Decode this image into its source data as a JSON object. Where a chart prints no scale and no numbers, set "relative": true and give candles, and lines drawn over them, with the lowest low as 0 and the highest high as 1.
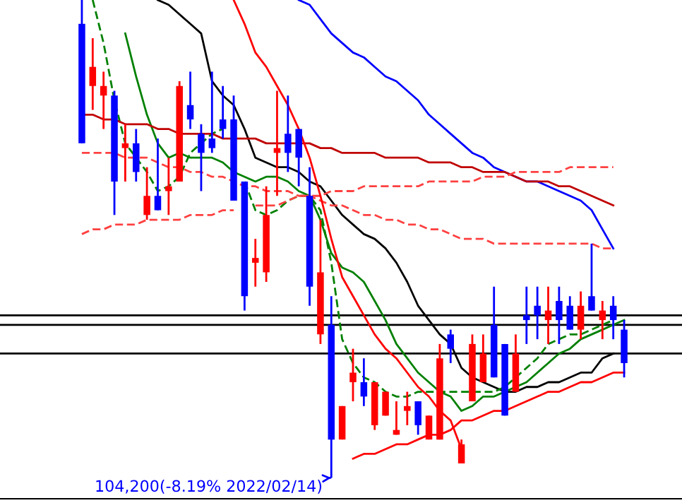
{
  "chart_data": {
    "type": "candlestick",
    "relative": true,
    "tick_labels": false,
    "categories": [
      null,
      null,
      null,
      null,
      null,
      null,
      null,
      null,
      null,
      null,
      null,
      null,
      null,
      null,
      null,
      null,
      null,
      null,
      null,
      null,
      null,
      null,
      null,
      null,
      null,
      null,
      null,
      null,
      null,
      null,
      null,
      null,
      null,
      null,
      null,
      null,
      null,
      null,
      null,
      null,
      null,
      null,
      null,
      null,
      null,
      null,
      null,
      null,
      null,
      null,
      null
    ],
    "ohlc": [
      [
        0.95,
        1.0,
        0.7,
        0.7
      ],
      [
        0.82,
        0.92,
        0.77,
        0.86
      ],
      [
        0.8,
        0.85,
        0.73,
        0.82
      ],
      [
        0.8,
        0.81,
        0.55,
        0.62
      ],
      [
        0.69,
        0.74,
        0.62,
        0.7
      ],
      [
        0.7,
        0.73,
        0.62,
        0.64
      ],
      [
        0.55,
        0.65,
        0.54,
        0.59
      ],
      [
        0.59,
        0.71,
        0.56,
        0.56
      ],
      [
        0.6,
        0.67,
        0.55,
        0.61
      ],
      [
        0.62,
        0.83,
        0.62,
        0.82
      ],
      [
        0.78,
        0.85,
        0.73,
        0.75
      ],
      [
        0.72,
        0.74,
        0.6,
        0.68
      ],
      [
        0.71,
        0.85,
        0.68,
        0.69
      ],
      [
        0.75,
        0.82,
        0.71,
        0.73
      ],
      [
        0.75,
        0.8,
        0.58,
        0.58
      ],
      [
        0.62,
        0.62,
        0.35,
        0.38
      ],
      [
        0.45,
        0.5,
        0.4,
        0.46
      ],
      [
        0.43,
        0.61,
        0.41,
        0.55
      ],
      [
        0.68,
        0.81,
        0.59,
        0.69
      ],
      [
        0.72,
        0.8,
        0.64,
        0.68
      ],
      [
        0.73,
        0.73,
        0.61,
        0.67
      ],
      [
        0.59,
        0.65,
        0.36,
        0.4
      ],
      [
        0.3,
        0.54,
        0.28,
        0.43
      ],
      [
        0.32,
        0.38,
        0.0,
        0.08
      ],
      [
        0.08,
        0.15,
        0.08,
        0.15
      ],
      [
        0.2,
        0.27,
        0.16,
        0.22
      ],
      [
        0.2,
        0.25,
        0.15,
        0.17
      ],
      [
        0.11,
        0.2,
        0.1,
        0.2
      ],
      [
        0.13,
        0.18,
        0.13,
        0.18
      ],
      [
        0.09,
        0.16,
        0.09,
        0.1
      ],
      [
        0.14,
        0.18,
        0.11,
        0.15
      ],
      [
        0.16,
        0.16,
        0.09,
        0.11
      ],
      [
        0.08,
        0.13,
        0.08,
        0.13
      ],
      [
        0.08,
        0.28,
        0.08,
        0.25
      ],
      [
        0.3,
        0.31,
        0.24,
        0.27
      ],
      [
        0.03,
        0.08,
        0.03,
        0.07
      ],
      [
        0.16,
        0.3,
        0.16,
        0.28
      ],
      [
        0.2,
        0.3,
        0.2,
        0.26
      ],
      [
        0.32,
        0.4,
        0.21,
        0.21
      ],
      [
        0.28,
        0.28,
        0.13,
        0.13
      ],
      [
        0.18,
        0.3,
        0.18,
        0.26
      ],
      [
        0.34,
        0.4,
        0.28,
        0.33
      ],
      [
        0.36,
        0.4,
        0.29,
        0.34
      ],
      [
        0.33,
        0.4,
        0.28,
        0.35
      ],
      [
        0.37,
        0.4,
        0.28,
        0.33
      ],
      [
        0.36,
        0.38,
        0.31,
        0.31
      ],
      [
        0.31,
        0.39,
        0.29,
        0.36
      ],
      [
        0.38,
        0.49,
        0.35,
        0.35
      ],
      [
        0.33,
        0.37,
        0.29,
        0.35
      ],
      [
        0.36,
        0.38,
        0.29,
        0.33
      ],
      [
        0.31,
        0.33,
        0.21,
        0.24
      ]
    ],
    "colors": [
      "#0000ff",
      "#ff0000",
      "#ff0000",
      "#0000ff",
      "#ff0000",
      "#0000ff",
      "#ff0000",
      "#0000ff",
      "#ff0000",
      "#ff0000",
      "#0000ff",
      "#0000ff",
      "#0000ff",
      "#0000ff",
      "#0000ff",
      "#0000ff",
      "#ff0000",
      "#ff0000",
      "#ff0000",
      "#0000ff",
      "#0000ff",
      "#0000ff",
      "#ff0000",
      "#0000ff",
      "#ff0000",
      "#ff0000",
      "#0000ff",
      "#ff0000",
      "#ff0000",
      "#ff0000",
      "#ff0000",
      "#0000ff",
      "#ff0000",
      "#ff0000",
      "#0000ff",
      "#ff0000",
      "#ff0000",
      "#ff0000",
      "#0000ff",
      "#0000ff",
      "#ff0000",
      "#0000ff",
      "#0000ff",
      "#ff0000",
      "#0000ff",
      "#0000ff",
      "#ff0000",
      "#0000ff",
      "#ff0000",
      "#0000ff",
      "#0000ff"
    ],
    "series": [
      {
        "type": "line",
        "color": "#0000ff",
        "line_style": "solid",
        "values": [
          null,
          null,
          null,
          null,
          null,
          null,
          null,
          null,
          null,
          null,
          null,
          null,
          null,
          null,
          null,
          null,
          null,
          null,
          null,
          null,
          1.0,
          0.99,
          0.96,
          0.93,
          0.91,
          0.89,
          0.88,
          0.86,
          0.84,
          0.83,
          0.81,
          0.79,
          0.76,
          0.74,
          0.72,
          0.7,
          0.68,
          0.67,
          0.65,
          0.64,
          0.63,
          0.62,
          0.62,
          0.61,
          0.6,
          0.59,
          0.58,
          0.56,
          0.52,
          0.48,
          null
        ]
      },
      {
        "type": "line",
        "color": "#000000",
        "line_style": "solid",
        "values": [
          null,
          null,
          null,
          null,
          null,
          null,
          null,
          1.0,
          0.99,
          0.97,
          0.95,
          0.93,
          0.83,
          0.8,
          0.78,
          0.73,
          0.67,
          0.66,
          0.65,
          0.65,
          0.64,
          0.62,
          0.61,
          0.58,
          0.55,
          0.53,
          0.51,
          0.5,
          0.48,
          0.45,
          0.41,
          0.36,
          0.33,
          0.3,
          0.28,
          0.23,
          0.21,
          0.2,
          0.19,
          0.18,
          0.18,
          0.19,
          0.19,
          0.2,
          0.2,
          0.21,
          0.22,
          0.22,
          0.25,
          0.26,
          null
        ]
      },
      {
        "type": "line",
        "color": "#008000",
        "line_style": "solid",
        "values": [
          null,
          null,
          null,
          null,
          0.93,
          0.84,
          0.76,
          0.7,
          0.67,
          0.68,
          0.67,
          0.67,
          0.67,
          0.66,
          0.64,
          0.63,
          0.62,
          0.63,
          0.63,
          0.62,
          0.6,
          0.59,
          0.54,
          0.47,
          0.44,
          0.43,
          0.41,
          0.37,
          0.33,
          0.28,
          0.25,
          0.22,
          0.2,
          0.18,
          0.17,
          0.14,
          0.15,
          0.17,
          0.17,
          0.18,
          0.19,
          0.2,
          0.22,
          0.24,
          0.26,
          0.27,
          0.29,
          0.3,
          0.31,
          0.32,
          0.33
        ]
      },
      {
        "type": "line",
        "color": "#008000",
        "line_style": "dashed",
        "values": [
          null,
          1.0,
          0.91,
          0.79,
          0.7,
          0.67,
          0.64,
          0.6,
          0.61,
          0.63,
          0.68,
          0.7,
          0.72,
          0.73,
          null,
          0.62,
          0.56,
          0.55,
          0.56,
          0.58,
          0.59,
          0.59,
          0.56,
          0.45,
          0.29,
          0.24,
          0.21,
          0.2,
          0.18,
          0.17,
          0.17,
          0.18,
          0.18,
          0.18,
          0.18,
          0.18,
          0.18,
          0.18,
          0.18,
          0.19,
          0.21,
          0.23,
          0.25,
          0.28,
          0.29,
          0.3,
          0.3,
          0.31,
          0.32,
          0.33,
          null
        ]
      },
      {
        "type": "line",
        "color": "#c00000",
        "line_style": "solid",
        "values": [
          0.76,
          0.76,
          0.75,
          0.75,
          0.74,
          0.74,
          0.74,
          0.73,
          0.73,
          0.72,
          0.72,
          0.72,
          0.72,
          0.71,
          0.71,
          0.71,
          0.71,
          0.7,
          0.7,
          0.7,
          0.7,
          0.7,
          0.69,
          0.69,
          0.68,
          0.68,
          0.68,
          0.68,
          0.67,
          0.67,
          0.67,
          0.67,
          0.66,
          0.66,
          0.66,
          0.65,
          0.65,
          0.64,
          0.64,
          0.64,
          0.63,
          0.62,
          0.62,
          0.62,
          0.61,
          0.61,
          0.6,
          0.59,
          0.58,
          0.57,
          null
        ]
      },
      {
        "type": "line",
        "color": "#ff4040",
        "line_style": "dashed",
        "values": [
          0.68,
          0.68,
          0.68,
          0.68,
          0.67,
          0.67,
          0.67,
          0.66,
          0.65,
          0.65,
          0.64,
          0.64,
          0.63,
          0.63,
          0.62,
          0.61,
          0.61,
          0.6,
          0.6,
          0.6,
          0.59,
          0.59,
          0.58,
          0.57,
          0.57,
          0.56,
          0.55,
          0.55,
          0.54,
          0.54,
          0.53,
          0.53,
          0.52,
          0.52,
          0.51,
          0.5,
          0.5,
          0.5,
          0.49,
          0.49,
          0.49,
          0.49,
          0.49,
          0.49,
          0.49,
          0.49,
          0.49,
          0.49,
          0.48,
          0.48,
          null
        ]
      },
      {
        "type": "line",
        "color": "#ff4040",
        "line_style": "dashed",
        "values": [
          0.51,
          0.52,
          0.52,
          0.53,
          0.53,
          0.53,
          0.54,
          0.54,
          0.54,
          0.54,
          0.55,
          0.55,
          0.55,
          0.56,
          0.56,
          null,
          0.57,
          0.57,
          0.57,
          0.58,
          0.59,
          0.59,
          0.59,
          0.6,
          0.6,
          0.6,
          0.61,
          0.61,
          0.61,
          0.61,
          0.61,
          0.61,
          0.62,
          0.62,
          0.62,
          0.62,
          0.62,
          0.63,
          0.63,
          0.63,
          0.64,
          0.64,
          0.64,
          0.64,
          0.64,
          0.65,
          0.65,
          0.65,
          0.65,
          0.65,
          null
        ]
      },
      {
        "type": "line",
        "color": "#ff0000",
        "line_style": "solid",
        "values": [
          null,
          null,
          null,
          null,
          null,
          null,
          null,
          null,
          null,
          null,
          null,
          null,
          null,
          null,
          1.0,
          0.95,
          0.89,
          0.86,
          0.82,
          0.78,
          0.73,
          0.67,
          0.59,
          0.5,
          0.42,
          0.38,
          0.34,
          0.3,
          0.27,
          0.25,
          0.22,
          0.19,
          0.17,
          0.14,
          0.12,
          0.06,
          null,
          null,
          null,
          null,
          null,
          null,
          null,
          null,
          null,
          null,
          null,
          null,
          null,
          null,
          null
        ]
      },
      {
        "type": "line",
        "color": "#ff0000",
        "line_style": "solid",
        "values": [
          null,
          null,
          null,
          null,
          null,
          null,
          null,
          null,
          null,
          null,
          null,
          null,
          null,
          null,
          null,
          null,
          null,
          null,
          null,
          null,
          null,
          null,
          null,
          null,
          null,
          0.04,
          0.05,
          0.05,
          0.06,
          0.07,
          0.07,
          0.08,
          0.09,
          0.09,
          0.1,
          0.12,
          0.12,
          0.13,
          0.14,
          0.14,
          0.15,
          0.16,
          0.17,
          0.18,
          0.18,
          0.19,
          0.2,
          0.2,
          0.21,
          0.22,
          0.22
        ]
      }
    ],
    "ref_lines": [
      {
        "axis": "y",
        "value": 0.34,
        "color": "#000000"
      },
      {
        "axis": "y",
        "value": 0.32,
        "color": "#000000"
      },
      {
        "axis": "y",
        "value": 0.26,
        "color": "#000000"
      }
    ],
    "annotations": [
      "104,200(-8.19% 2022/02/14)"
    ]
  }
}
